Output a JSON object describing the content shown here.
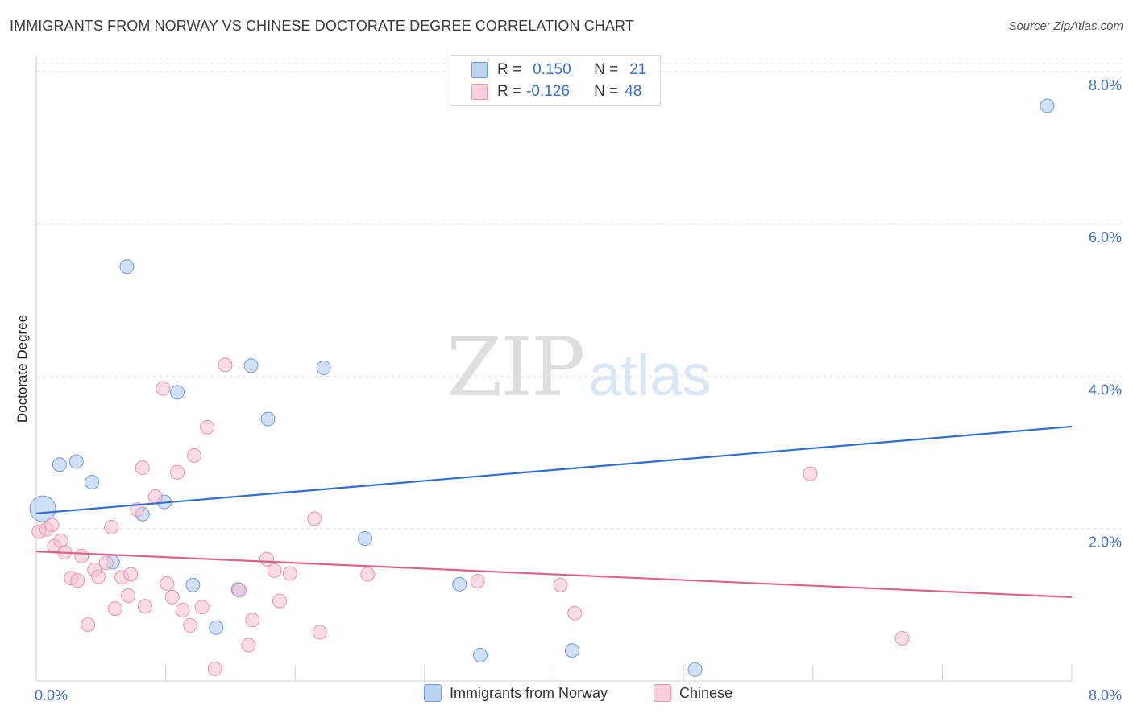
{
  "title": "IMMIGRANTS FROM NORWAY VS CHINESE DOCTORATE DEGREE CORRELATION CHART",
  "source": "Source: ZipAtlas.com",
  "watermark": {
    "zip": "ZIP",
    "atlas": "atlas"
  },
  "legend_top": {
    "rows": [
      {
        "r_key": "R =",
        "r_val": "0.150",
        "n_key": "N =",
        "n_val": "21"
      },
      {
        "r_key": "R =",
        "r_val": "-0.126",
        "n_key": "N =",
        "n_val": "48"
      }
    ]
  },
  "chart_data": {
    "type": "scatter",
    "title": "IMMIGRANTS FROM NORWAY VS CHINESE DOCTORATE DEGREE CORRELATION CHART",
    "xlabel": "",
    "ylabel": "Doctorate Degree",
    "xlim": [
      0,
      8
    ],
    "ylim": [
      0,
      8.2
    ],
    "x_tick_labels": [
      {
        "value": 0,
        "label": "0.0%"
      },
      {
        "value": 8,
        "label": "8.0%"
      }
    ],
    "y_ticks": [
      {
        "value": 2,
        "label": "2.0%"
      },
      {
        "value": 4,
        "label": "4.0%"
      },
      {
        "value": 6,
        "label": "6.0%"
      },
      {
        "value": 8,
        "label": "8.0%"
      }
    ],
    "legend_position": "bottom",
    "series": [
      {
        "name": "Immigrants from Norway",
        "color": "#a9c6ef",
        "stroke": "#6f9bdc",
        "line_color": "#2f6fd0",
        "trend": {
          "x": [
            0,
            8
          ],
          "y": [
            2.2,
            3.34
          ]
        },
        "points": [
          {
            "x": 0.05,
            "y": 2.26,
            "big": true
          },
          {
            "x": 0.18,
            "y": 2.84
          },
          {
            "x": 0.31,
            "y": 2.88
          },
          {
            "x": 0.43,
            "y": 2.61
          },
          {
            "x": 0.59,
            "y": 1.56
          },
          {
            "x": 0.7,
            "y": 5.44
          },
          {
            "x": 0.82,
            "y": 2.19
          },
          {
            "x": 0.99,
            "y": 2.35
          },
          {
            "x": 1.09,
            "y": 3.79
          },
          {
            "x": 1.21,
            "y": 1.26
          },
          {
            "x": 1.39,
            "y": 0.7
          },
          {
            "x": 1.56,
            "y": 1.2
          },
          {
            "x": 1.66,
            "y": 4.14
          },
          {
            "x": 1.79,
            "y": 3.44
          },
          {
            "x": 2.22,
            "y": 4.11
          },
          {
            "x": 2.54,
            "y": 1.87
          },
          {
            "x": 3.27,
            "y": 1.27
          },
          {
            "x": 3.43,
            "y": 0.34
          },
          {
            "x": 4.14,
            "y": 0.4
          },
          {
            "x": 5.09,
            "y": 0.15
          },
          {
            "x": 7.81,
            "y": 7.55
          }
        ]
      },
      {
        "name": "Chinese",
        "color": "#f6bfd0",
        "stroke": "#e993ad",
        "line_color": "#e0608a",
        "trend": {
          "x": [
            0,
            8
          ],
          "y": [
            1.7,
            1.1
          ]
        },
        "points": [
          {
            "x": 0.02,
            "y": 1.96
          },
          {
            "x": 0.08,
            "y": 1.99
          },
          {
            "x": 0.12,
            "y": 2.05
          },
          {
            "x": 0.14,
            "y": 1.77
          },
          {
            "x": 0.19,
            "y": 1.84
          },
          {
            "x": 0.22,
            "y": 1.69
          },
          {
            "x": 0.27,
            "y": 1.35
          },
          {
            "x": 0.32,
            "y": 1.32
          },
          {
            "x": 0.35,
            "y": 1.64
          },
          {
            "x": 0.4,
            "y": 0.74
          },
          {
            "x": 0.45,
            "y": 1.46
          },
          {
            "x": 0.48,
            "y": 1.37
          },
          {
            "x": 0.54,
            "y": 1.55
          },
          {
            "x": 0.58,
            "y": 2.02
          },
          {
            "x": 0.61,
            "y": 0.95
          },
          {
            "x": 0.66,
            "y": 1.36
          },
          {
            "x": 0.71,
            "y": 1.12
          },
          {
            "x": 0.73,
            "y": 1.4
          },
          {
            "x": 0.78,
            "y": 2.25
          },
          {
            "x": 0.82,
            "y": 2.8
          },
          {
            "x": 0.84,
            "y": 0.98
          },
          {
            "x": 0.92,
            "y": 2.42
          },
          {
            "x": 0.98,
            "y": 3.84
          },
          {
            "x": 1.01,
            "y": 1.28
          },
          {
            "x": 1.05,
            "y": 1.1
          },
          {
            "x": 1.09,
            "y": 2.74
          },
          {
            "x": 1.13,
            "y": 0.93
          },
          {
            "x": 1.19,
            "y": 0.73
          },
          {
            "x": 1.22,
            "y": 2.96
          },
          {
            "x": 1.28,
            "y": 0.97
          },
          {
            "x": 1.32,
            "y": 3.33
          },
          {
            "x": 1.38,
            "y": 0.16
          },
          {
            "x": 1.46,
            "y": 4.15
          },
          {
            "x": 1.57,
            "y": 1.19
          },
          {
            "x": 1.64,
            "y": 0.47
          },
          {
            "x": 1.67,
            "y": 0.8
          },
          {
            "x": 1.78,
            "y": 1.6
          },
          {
            "x": 1.84,
            "y": 1.45
          },
          {
            "x": 1.88,
            "y": 1.05
          },
          {
            "x": 1.96,
            "y": 1.41
          },
          {
            "x": 2.15,
            "y": 2.13
          },
          {
            "x": 2.19,
            "y": 0.64
          },
          {
            "x": 2.56,
            "y": 1.4
          },
          {
            "x": 3.41,
            "y": 1.31
          },
          {
            "x": 4.05,
            "y": 1.26
          },
          {
            "x": 4.16,
            "y": 0.89
          },
          {
            "x": 5.98,
            "y": 2.72
          },
          {
            "x": 6.69,
            "y": 0.56
          }
        ]
      }
    ]
  }
}
